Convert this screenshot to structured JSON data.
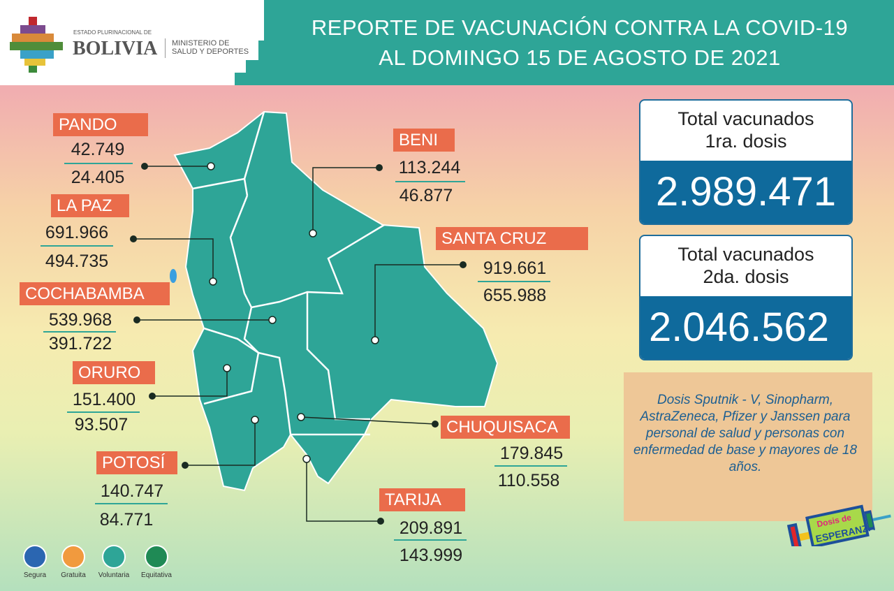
{
  "header": {
    "title_line1": "REPORTE DE VACUNACIÓN CONTRA LA COVID-19",
    "title_line2": "AL DOMINGO 15 DE AGOSTO DE 2021",
    "logo_small": "ESTADO PLURINACIONAL DE",
    "logo_big": "BOLIVIA",
    "ministry_line1": "MINISTERIO DE",
    "ministry_line2": "SALUD Y DEPORTES"
  },
  "departments": [
    {
      "name": "PANDO",
      "first_dose": "42.749",
      "second_dose": "24.405"
    },
    {
      "name": "BENI",
      "first_dose": "113.244",
      "second_dose": "46.877"
    },
    {
      "name": "LA PAZ",
      "first_dose": "691.966",
      "second_dose": "494.735"
    },
    {
      "name": "SANTA CRUZ",
      "first_dose": "919.661",
      "second_dose": "655.988"
    },
    {
      "name": "COCHABAMBA",
      "first_dose": "539.968",
      "second_dose": "391.722"
    },
    {
      "name": "ORURO",
      "first_dose": "151.400",
      "second_dose": "93.507"
    },
    {
      "name": "CHUQUISACA",
      "first_dose": "179.845",
      "second_dose": "110.558"
    },
    {
      "name": "POTOSÍ",
      "first_dose": "140.747",
      "second_dose": "84.771"
    },
    {
      "name": "TARIJA",
      "first_dose": "209.891",
      "second_dose": "143.999"
    }
  ],
  "totals": {
    "first": {
      "label1": "Total vacunados",
      "label2": "1ra. dosis",
      "value": "2.989.471"
    },
    "second": {
      "label1": "Total vacunados",
      "label2": "2da. dosis",
      "value": "2.046.562"
    }
  },
  "note": "Dosis Sputnik - V, Sinopharm, AstraZeneca, Pfizer y Janssen para personal de salud y personas con enfermedad de base y mayores de 18 años.",
  "campaign_logo": "Dosis de ESPERANZA",
  "values": [
    {
      "label": "Segura",
      "icon": "shield-check-icon",
      "color": "#2b66b1"
    },
    {
      "label": "Gratuita",
      "icon": "smiley-icon",
      "color": "#f19a3e"
    },
    {
      "label": "Voluntaria",
      "icon": "raised-hand-icon",
      "color": "#2ea597"
    },
    {
      "label": "Equitativa",
      "icon": "scales-icon",
      "color": "#1f8a55"
    }
  ],
  "colors": {
    "teal": "#2ea597",
    "orange": "#ea6c4b",
    "blue": "#0f6a9c",
    "map": "#2ea597"
  }
}
